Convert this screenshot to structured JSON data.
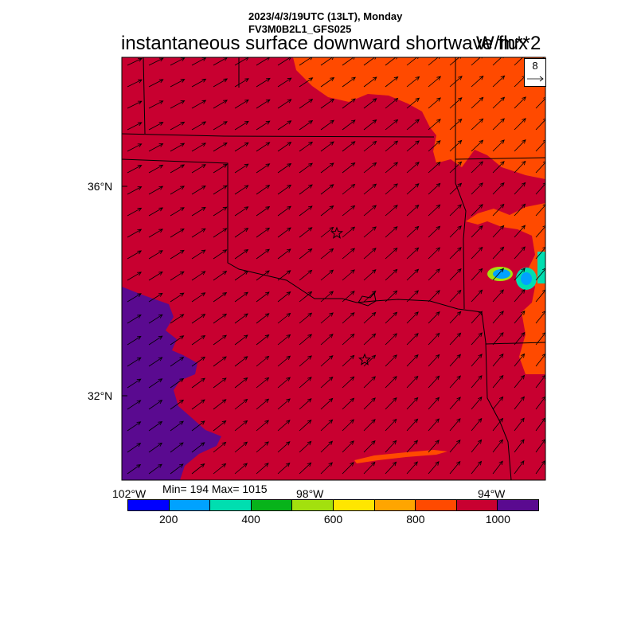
{
  "title": {
    "datetime": "2023/4/3/19UTC (13LT), Monday",
    "model": "FV3M0B2L1_GFS025",
    "variable": "instantaneous surface downward shortwave flux",
    "units": "W/m**2"
  },
  "axes": {
    "lat_labels": [
      "36°N",
      "32°N"
    ],
    "lon_labels": [
      "102°W",
      "98°W",
      "94°W"
    ]
  },
  "stats": {
    "text": "Min= 194 Max= 1015",
    "min": 194,
    "max": 1015
  },
  "colorbar": {
    "colors": [
      "#0000ff",
      "#00a2ff",
      "#00deb0",
      "#07b31a",
      "#a3e00e",
      "#ffe600",
      "#ffa500",
      "#ff4a00",
      "#c80030",
      "#5a0a90"
    ],
    "tick_labels": [
      "200",
      "400",
      "600",
      "800",
      "1000"
    ],
    "tick_values": [
      200,
      400,
      600,
      800,
      1000
    ],
    "range": [
      100,
      1100
    ]
  },
  "wind_reference": {
    "value": "8"
  },
  "colors": {
    "field_dominant": "#c80030",
    "field_orange": "#ff4a00",
    "field_purple": "#5a0a90",
    "field_amber": "#ffa500"
  },
  "markers": [
    {
      "symbol": "star",
      "label": ""
    },
    {
      "symbol": "star",
      "label": ""
    }
  ],
  "map_layers": [
    "shortwave-flux-field",
    "state-boundaries",
    "wind-vectors",
    "site-markers"
  ]
}
